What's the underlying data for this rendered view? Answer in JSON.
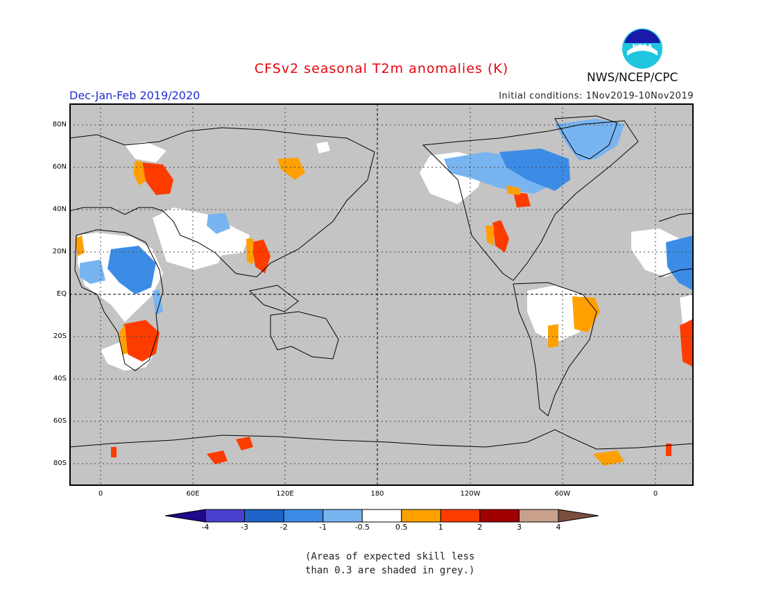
{
  "header": {
    "title": "CFSv2 seasonal T2m anomalies (K)",
    "season": "Dec-Jan-Feb 2019/2020",
    "initial_conditions": "Initial conditions: 1Nov2019-10Nov2019",
    "agency": "NWS/NCEP/CPC",
    "logo_text": "NOAA"
  },
  "axes": {
    "lat_labels": [
      "80N",
      "60N",
      "40N",
      "20N",
      "EQ",
      "20S",
      "40S",
      "60S",
      "80S"
    ],
    "lon_labels": [
      "0",
      "60E",
      "120E",
      "180",
      "120W",
      "60W",
      "0"
    ]
  },
  "legend": {
    "tick_labels": [
      "-4",
      "-3",
      "-2",
      "-1",
      "-0.5",
      "0.5",
      "1",
      "2",
      "3",
      "4"
    ],
    "colors": [
      "#1e0a8a",
      "#4b3fd0",
      "#1e64c8",
      "#3c8ce6",
      "#78b4f0",
      "#ffffff",
      "#ffa000",
      "#ff3c00",
      "#a00000",
      "#c8a08c",
      "#7a4e3e"
    ]
  },
  "note": {
    "line1": "(Areas of expected skill less",
    "line2": "than 0.3 are shaded in grey.)"
  },
  "colors": {
    "title": "#e8000b",
    "season": "#1f2fcf",
    "no_skill": "#c4c4c4"
  }
}
